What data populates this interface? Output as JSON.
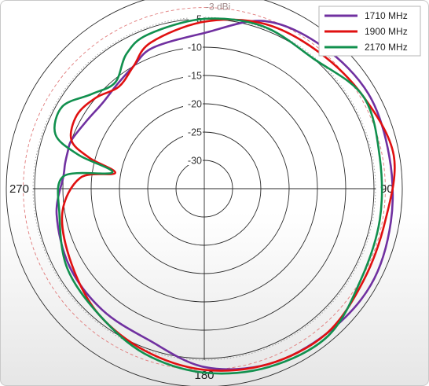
{
  "chart_data": {
    "type": "line",
    "polar": true,
    "radial_ticks": [
      "0",
      "-5",
      "-10",
      "-15",
      "-20",
      "-25",
      "-30"
    ],
    "rlim": [
      -35,
      0
    ],
    "reference_ring": {
      "value": -3,
      "label": "-3 dBi",
      "color": "#e07a7a"
    },
    "angle_labels": [
      {
        "angle": 90,
        "text": "90"
      },
      {
        "angle": 180,
        "text": "180"
      },
      {
        "angle": 270,
        "text": "270"
      }
    ],
    "legend_position": "top-right",
    "grid": true,
    "angles": [
      0,
      20,
      40,
      60,
      80,
      100,
      120,
      140,
      160,
      180,
      200,
      220,
      240,
      260,
      275,
      280,
      285,
      290,
      300,
      310,
      320,
      330,
      340
    ],
    "series": [
      {
        "name": "1710 MHz",
        "color": "#7030a0",
        "values": [
          -7.5,
          -3.5,
          -2.3,
          -1.5,
          -1.8,
          -1.5,
          -1.0,
          -1.5,
          -2.0,
          -3.5,
          -6.5,
          -7.0,
          -7.5,
          -8.5,
          -10.0,
          -10.0,
          -10.0,
          -10.0,
          -11.0,
          -11.5,
          -11.0,
          -10.0,
          -8.5
        ]
      },
      {
        "name": "1900 MHz",
        "color": "#e01010",
        "values": [
          -5.5,
          -4.0,
          -3.5,
          -2.5,
          -1.0,
          -2.5,
          -2.5,
          -1.5,
          -2.0,
          -3.0,
          -4.5,
          -6.0,
          -8.0,
          -9.5,
          -13.0,
          -19.0,
          -14.0,
          -10.0,
          -9.0,
          -10.0,
          -11.5,
          -10.0,
          -7.5
        ]
      },
      {
        "name": "2170 MHz",
        "color": "#11904e",
        "values": [
          -5.0,
          -4.5,
          -5.0,
          -2.5,
          -3.5,
          -3.5,
          -3.0,
          -1.0,
          -1.5,
          -2.5,
          -4.0,
          -6.0,
          -7.0,
          -9.0,
          -10.0,
          -18.5,
          -12.0,
          -7.0,
          -6.0,
          -9.0,
          -10.5,
          -7.5,
          -6.0
        ]
      }
    ]
  }
}
